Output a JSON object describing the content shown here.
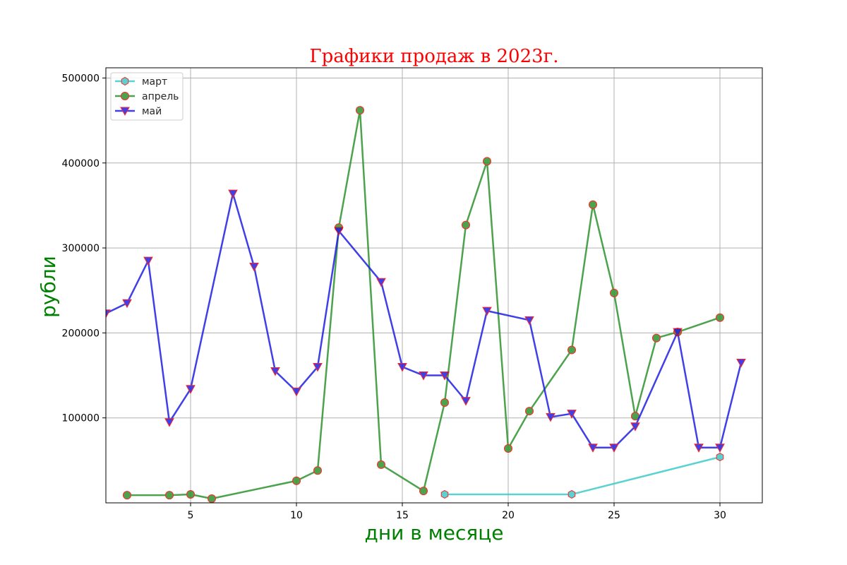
{
  "chart_data": {
    "type": "line",
    "title": "Графики продаж в 2023г.",
    "xlabel": "дни в месяце",
    "ylabel": "рубли",
    "xlim": [
      1,
      32
    ],
    "ylim": [
      0,
      512000
    ],
    "x_ticks": [
      5,
      10,
      15,
      20,
      25,
      30
    ],
    "y_ticks": [
      100000,
      200000,
      300000,
      400000,
      500000
    ],
    "grid": true,
    "legend_position": "top-left",
    "colors": {
      "title": "#ff0000",
      "axis_labels": "#008000",
      "marker_edge": "#ff0000",
      "grid": "#b0b0b0"
    },
    "series": [
      {
        "name": "март",
        "color": "#3fcbcb",
        "marker": "hexagon",
        "x": [
          17,
          23,
          30
        ],
        "y": [
          10000,
          10000,
          54000
        ]
      },
      {
        "name": "апрель",
        "color": "#2e922e",
        "marker": "circle",
        "x": [
          2,
          4,
          5,
          6,
          10,
          11,
          12,
          13,
          14,
          16,
          17,
          18,
          19,
          20,
          21,
          23,
          24,
          25,
          26,
          27,
          28,
          30
        ],
        "y": [
          9000,
          9000,
          10000,
          5000,
          26000,
          38000,
          324000,
          462000,
          45000,
          14000,
          118000,
          327000,
          402000,
          64000,
          108000,
          180000,
          351000,
          247000,
          102000,
          194000,
          201000,
          218000
        ]
      },
      {
        "name": "май",
        "color": "#1f1fe6",
        "marker": "triangle-down",
        "x": [
          1,
          2,
          3,
          4,
          5,
          7,
          8,
          9,
          10,
          11,
          12,
          14,
          15,
          16,
          17,
          18,
          19,
          21,
          22,
          23,
          24,
          25,
          26,
          28,
          29,
          30,
          31
        ],
        "y": [
          223000,
          235000,
          285000,
          95000,
          134000,
          364000,
          278000,
          155000,
          131000,
          160000,
          320000,
          260000,
          160000,
          150000,
          150000,
          120000,
          226000,
          215000,
          101000,
          105000,
          65000,
          65000,
          90000,
          201000,
          65000,
          65000,
          165000
        ]
      }
    ]
  }
}
